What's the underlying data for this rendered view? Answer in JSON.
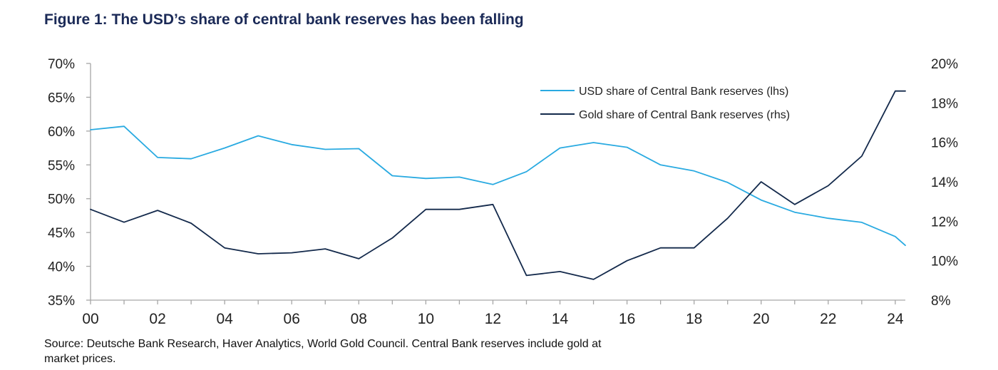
{
  "title": "Figure 1: The USD’s share of central bank reserves has been falling",
  "source_note": "Source: Deutsche Bank Research, Haver Analytics, World Gold Council. Central Bank reserves include gold at market prices.",
  "colors": {
    "title": "#1b2a57",
    "usd_series": "#29aae1",
    "gold_series": "#13294b",
    "axis": "#a6a6a6"
  },
  "chart_data": {
    "type": "line",
    "x": [
      2000,
      2001,
      2002,
      2003,
      2004,
      2005,
      2006,
      2007,
      2008,
      2009,
      2010,
      2011,
      2012,
      2013,
      2014,
      2015,
      2016,
      2017,
      2018,
      2019,
      2020,
      2021,
      2022,
      2023,
      2024,
      2024.3
    ],
    "x_ticks": [
      "00",
      "02",
      "04",
      "06",
      "08",
      "10",
      "12",
      "14",
      "16",
      "18",
      "20",
      "22",
      "24"
    ],
    "x_tick_values": [
      2000,
      2002,
      2004,
      2006,
      2008,
      2010,
      2012,
      2014,
      2016,
      2018,
      2020,
      2022,
      2024
    ],
    "x_range": [
      2000,
      2024.3
    ],
    "y_left": {
      "range": [
        35,
        70
      ],
      "ticks": [
        "35%",
        "40%",
        "45%",
        "50%",
        "55%",
        "60%",
        "65%",
        "70%"
      ],
      "tick_values": [
        35,
        40,
        45,
        50,
        55,
        60,
        65,
        70
      ]
    },
    "y_right": {
      "range": [
        8,
        20
      ],
      "ticks": [
        "8%",
        "10%",
        "12%",
        "14%",
        "16%",
        "18%",
        "20%"
      ],
      "tick_values": [
        8,
        10,
        12,
        14,
        16,
        18,
        20
      ]
    },
    "series": [
      {
        "name": "USD share of Central Bank reserves (lhs)",
        "axis": "left",
        "values": [
          60.2,
          60.7,
          56.1,
          55.9,
          57.5,
          59.3,
          58.0,
          57.3,
          57.4,
          53.4,
          53.0,
          53.2,
          52.1,
          54.0,
          57.5,
          58.3,
          57.6,
          55.0,
          54.1,
          52.4,
          49.8,
          48.0,
          47.1,
          46.5,
          44.4,
          43.1
        ]
      },
      {
        "name": "Gold share of Central Bank reserves (rhs)",
        "axis": "right",
        "values": [
          12.6,
          11.95,
          12.55,
          11.9,
          10.65,
          10.35,
          10.4,
          10.6,
          10.1,
          11.15,
          12.6,
          12.6,
          12.85,
          9.25,
          9.45,
          9.05,
          10.0,
          10.65,
          10.65,
          12.15,
          14.0,
          12.85,
          13.8,
          15.3,
          18.6,
          18.6
        ]
      }
    ],
    "legend_position": "top-right",
    "grid": false
  }
}
